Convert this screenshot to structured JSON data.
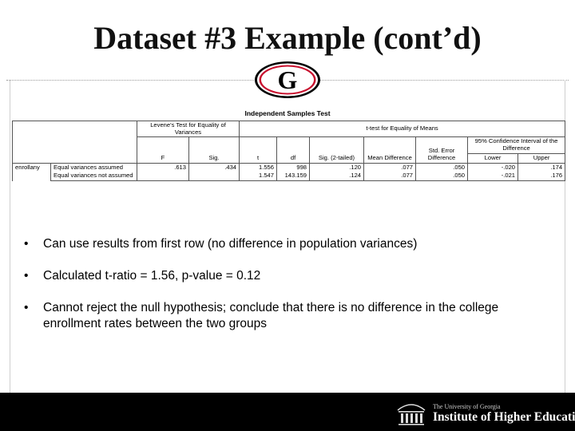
{
  "slide": {
    "title": "Dataset #3 Example (cont’d)"
  },
  "logo": {
    "icon": "georgia-g-logo-icon",
    "letter": "G"
  },
  "table": {
    "caption": "Independent Samples Test",
    "levene_header": "Levene's Test for Equality of Variances",
    "ttest_header": "t-test for Equality of Means",
    "ci_header": "95% Confidence Interval of the Difference",
    "columns": {
      "f": "F",
      "sig": "Sig.",
      "t": "t",
      "df": "df",
      "sig2": "Sig. (2-tailed)",
      "mean_diff": "Mean Difference",
      "se_diff": "Std. Error Difference",
      "lower": "Lower",
      "upper": "Upper"
    },
    "variable": "enrollany",
    "rows": [
      {
        "label": "Equal variances assumed",
        "f": ".613",
        "sig": ".434",
        "t": "1.556",
        "df": "998",
        "sig2": ".120",
        "mean_diff": ".077",
        "se_diff": ".050",
        "lower": "-.020",
        "upper": ".174"
      },
      {
        "label": "Equal variances not assumed",
        "f": "",
        "sig": "",
        "t": "1.547",
        "df": "143.159",
        "sig2": ".124",
        "mean_diff": ".077",
        "se_diff": ".050",
        "lower": "-.021",
        "upper": ".176"
      }
    ]
  },
  "bullets": [
    "Can use results from first row (no difference in population variances)",
    "Calculated t-ratio = 1.56, p-value = 0.12",
    "Cannot reject the null hypothesis; conclude that there is no difference in the college enrollment rates between the two groups"
  ],
  "bullet_glyph": "•",
  "footer": {
    "icon": "ihe-building-logo-icon",
    "org_line1": "The University of Georgia",
    "org_line2": "Institute of Higher Education"
  },
  "colors": {
    "logo_red": "#c8102e",
    "footer_bg": "#000000"
  }
}
